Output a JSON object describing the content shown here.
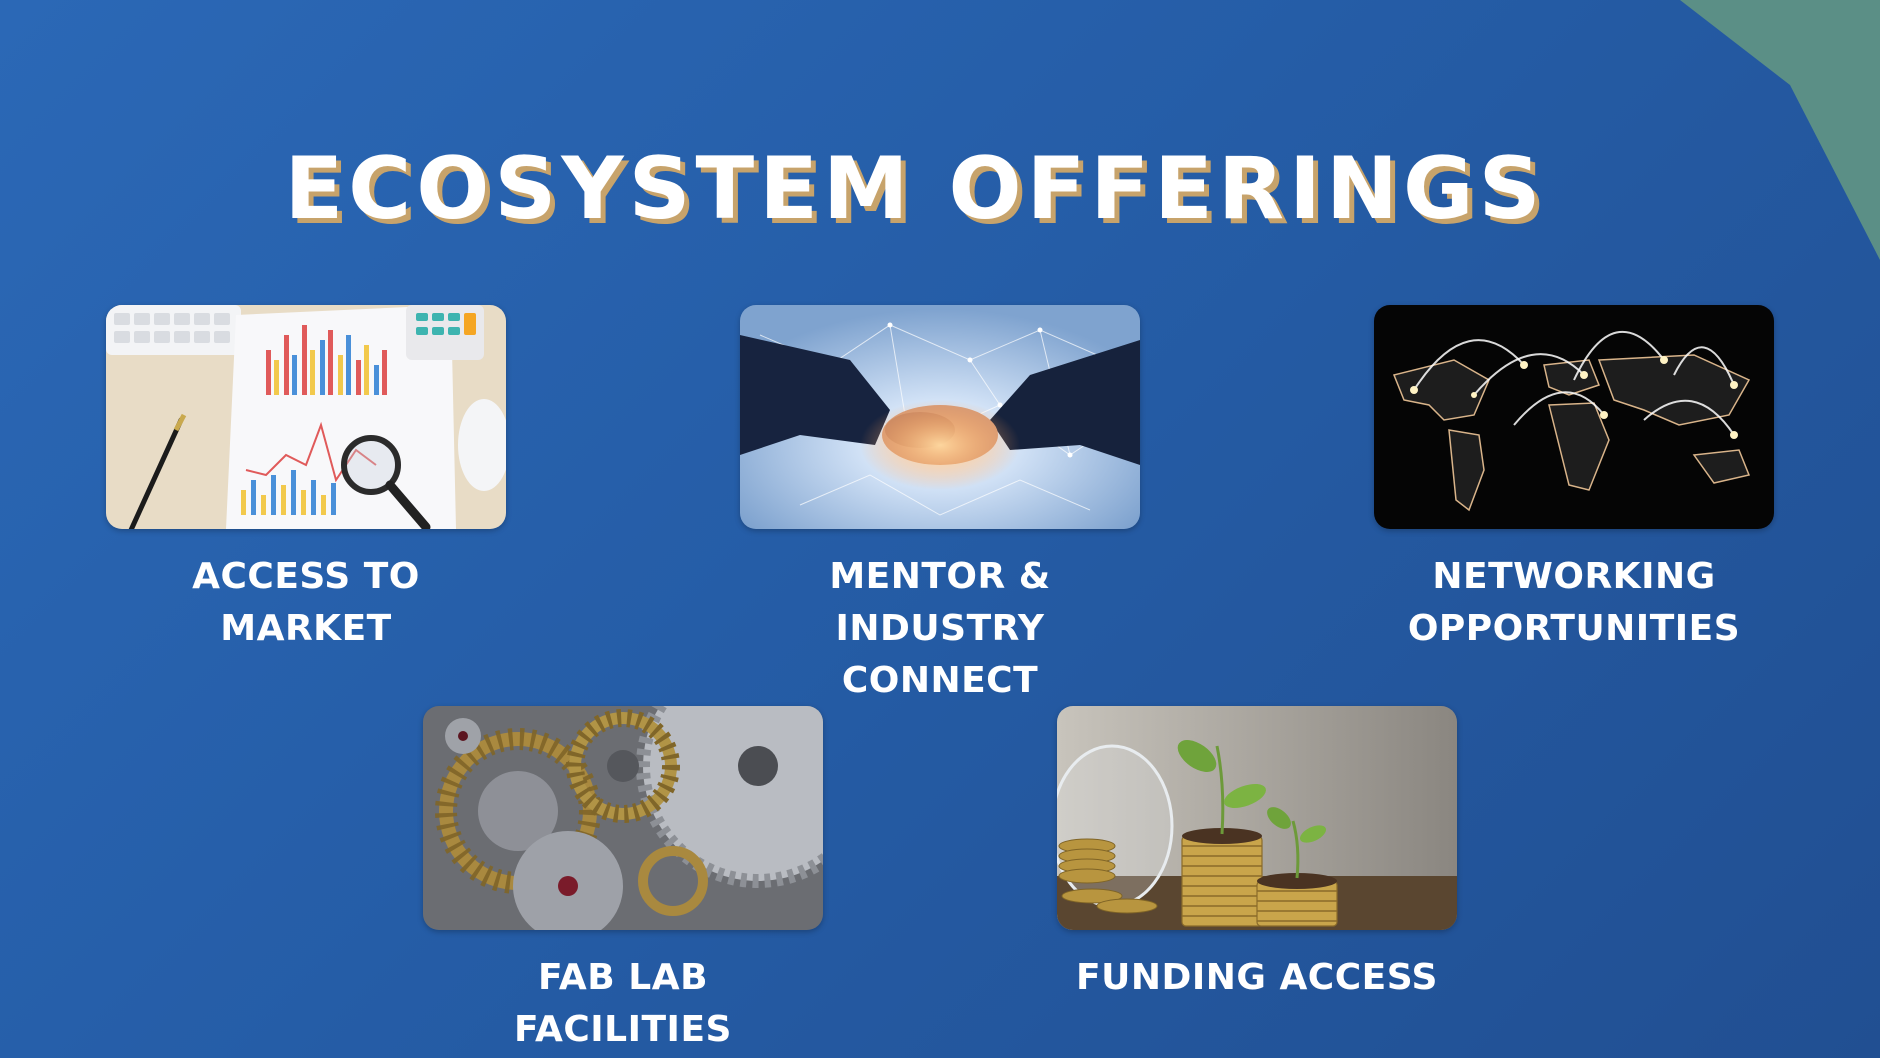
{
  "slide": {
    "title": "ECOSYSTEM OFFERINGS",
    "background_color": "#255da7",
    "corner_accent_color": "#5b8f86",
    "title_shadow_color": "#c7a36b"
  },
  "offerings": [
    {
      "image": "market-analysis-charts-photo",
      "lines": [
        "ACCESS TO",
        "MARKET"
      ]
    },
    {
      "image": "handshake-network-photo",
      "lines": [
        "MENTOR & INDUSTRY",
        "CONNECT"
      ]
    },
    {
      "image": "world-map-connections-photo",
      "lines": [
        "NETWORKING",
        "OPPORTUNITIES"
      ]
    },
    {
      "image": "mechanical-gears-photo",
      "lines": [
        "FAB LAB FACILITIES"
      ]
    },
    {
      "image": "coins-and-plants-photo",
      "lines": [
        "FUNDING ACCESS"
      ]
    }
  ]
}
